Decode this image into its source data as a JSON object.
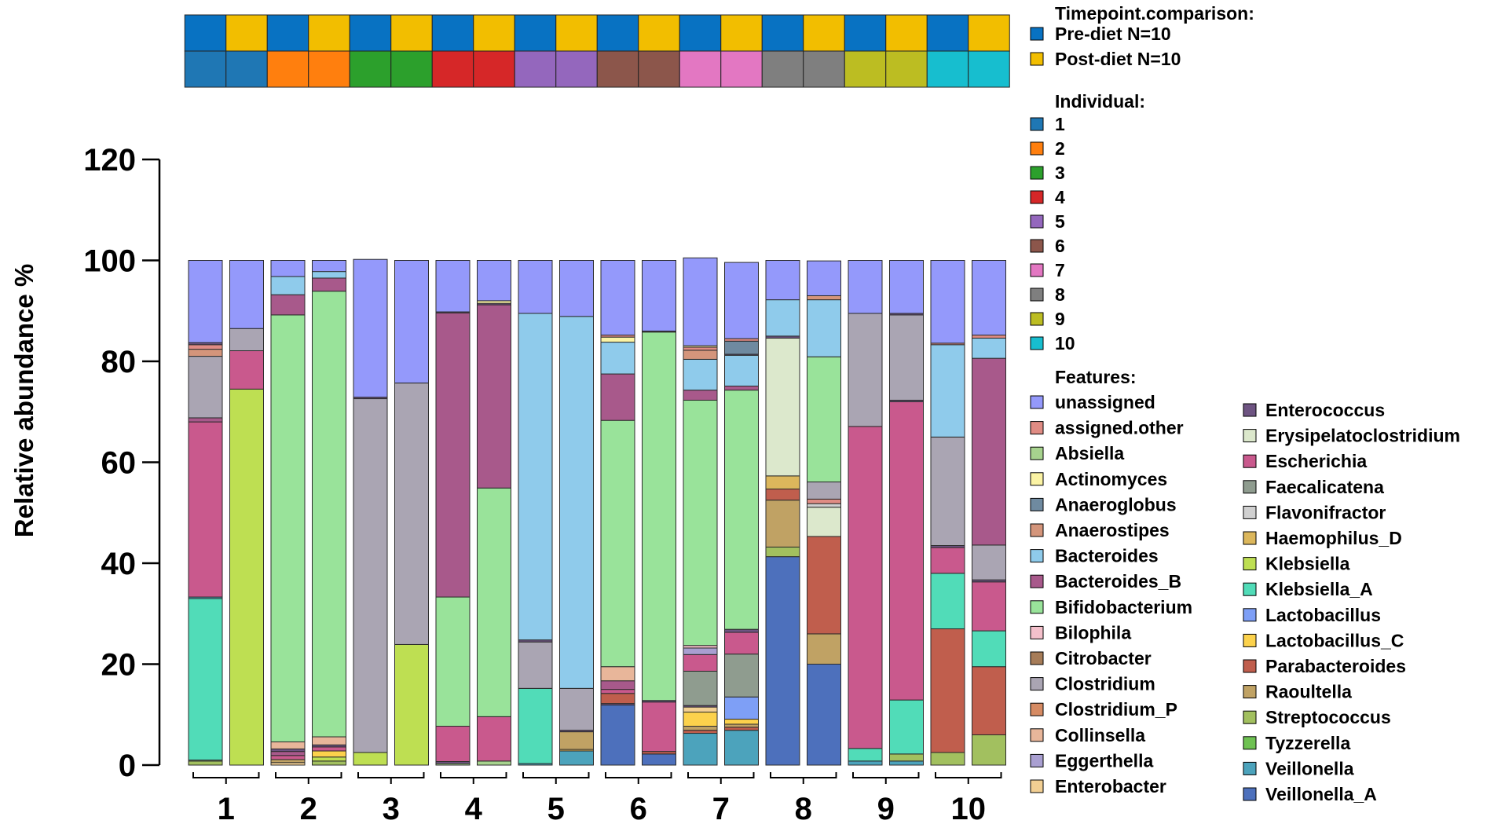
{
  "chart_data": {
    "type": "bar",
    "stacked": true,
    "ylabel": "Relative abundance %",
    "ylim": [
      0,
      120
    ],
    "yticks": [
      0,
      20,
      40,
      60,
      80,
      100,
      120
    ],
    "group_labels": [
      "1",
      "2",
      "3",
      "4",
      "5",
      "6",
      "7",
      "8",
      "9",
      "10"
    ],
    "bars_per_group": [
      "Pre-diet",
      "Post-diet"
    ],
    "legends": {
      "timepoint": {
        "title": "Timepoint.comparison:",
        "items": [
          {
            "label": "Pre-diet N=10",
            "color": "#0872c2"
          },
          {
            "label": "Post-diet N=10",
            "color": "#f2be00"
          }
        ]
      },
      "individual": {
        "title": "Individual:",
        "items": [
          {
            "label": "1",
            "color": "#1f77b4"
          },
          {
            "label": "2",
            "color": "#ff7f0e"
          },
          {
            "label": "3",
            "color": "#2ca02c"
          },
          {
            "label": "4",
            "color": "#d62728"
          },
          {
            "label": "5",
            "color": "#9467bd"
          },
          {
            "label": "6",
            "color": "#8c564b"
          },
          {
            "label": "7",
            "color": "#e377c2"
          },
          {
            "label": "8",
            "color": "#7f7f7f"
          },
          {
            "label": "9",
            "color": "#bcbd22"
          },
          {
            "label": "10",
            "color": "#17becf"
          }
        ]
      },
      "features_title": "Features:"
    },
    "features": [
      {
        "name": "unassigned",
        "color": "#9499fb"
      },
      {
        "name": "assigned.other",
        "color": "#e08c84"
      },
      {
        "name": "Absiella",
        "color": "#a7d38e"
      },
      {
        "name": "Actinomyces",
        "color": "#fbf3a4"
      },
      {
        "name": "Anaeroglobus",
        "color": "#6f8aa0"
      },
      {
        "name": "Anaerostipes",
        "color": "#d4957b"
      },
      {
        "name": "Bacteroides",
        "color": "#8fcbeb"
      },
      {
        "name": "Bacteroides_B",
        "color": "#a8598b"
      },
      {
        "name": "Bifidobacterium",
        "color": "#99e39a"
      },
      {
        "name": "Bilophila",
        "color": "#f4c0cb"
      },
      {
        "name": "Citrobacter",
        "color": "#a67c58"
      },
      {
        "name": "Clostridium",
        "color": "#aaa5b3"
      },
      {
        "name": "Clostridium_P",
        "color": "#d68b63"
      },
      {
        "name": "Collinsella",
        "color": "#e8b69a"
      },
      {
        "name": "Eggerthella",
        "color": "#a99fd1"
      },
      {
        "name": "Enterobacter",
        "color": "#f2cf93"
      },
      {
        "name": "Enterococcus",
        "color": "#6e5482"
      },
      {
        "name": "Erysipelatoclostridium",
        "color": "#dce8cc"
      },
      {
        "name": "Escherichia",
        "color": "#c9598d"
      },
      {
        "name": "Faecalicatena",
        "color": "#8f9c8f"
      },
      {
        "name": "Flavonifractor",
        "color": "#d0d0d0"
      },
      {
        "name": "Haemophilus_D",
        "color": "#dcb75c"
      },
      {
        "name": "Klebsiella",
        "color": "#bedf52"
      },
      {
        "name": "Klebsiella_A",
        "color": "#51dcb8"
      },
      {
        "name": "Lactobacillus",
        "color": "#7e9ff6"
      },
      {
        "name": "Lactobacillus_C",
        "color": "#fcd24c"
      },
      {
        "name": "Parabacteroides",
        "color": "#c05e4d"
      },
      {
        "name": "Raoultella",
        "color": "#c0a264"
      },
      {
        "name": "Streptococcus",
        "color": "#a2c05f"
      },
      {
        "name": "Tyzzerella",
        "color": "#6ec152"
      },
      {
        "name": "Veillonella",
        "color": "#4ca3bc"
      },
      {
        "name": "Veillonella_A",
        "color": "#4d70bc"
      }
    ],
    "bars": [
      {
        "individual": "1",
        "timepoint": "Pre-diet",
        "segments": [
          [
            "Streptococcus",
            0.8
          ],
          [
            "Absiella",
            0.2
          ],
          [
            "Klebsiella_A",
            32.0
          ],
          [
            "Veillonella",
            0.3
          ],
          [
            "Escherichia",
            34.7
          ],
          [
            "Bacteroides_B",
            0.8
          ],
          [
            "Clostridium",
            12.2
          ],
          [
            "Anaerostipes",
            1.4
          ],
          [
            "assigned.other",
            0.9
          ],
          [
            "Enterococcus",
            0.4
          ],
          [
            "unassigned",
            16.3
          ]
        ]
      },
      {
        "individual": "1",
        "timepoint": "Post-diet",
        "segments": [
          [
            "Klebsiella",
            74.5
          ],
          [
            "Escherichia",
            7.6
          ],
          [
            "Clostridium",
            4.4
          ],
          [
            "unassigned",
            13.5
          ]
        ]
      },
      {
        "individual": "2",
        "timepoint": "Pre-diet",
        "segments": [
          [
            "Enterobacter",
            0.5
          ],
          [
            "Raoultella",
            0.6
          ],
          [
            "Escherichia",
            0.8
          ],
          [
            "Bacteroides_B",
            0.8
          ],
          [
            "Enterococcus",
            0.5
          ],
          [
            "Collinsella",
            1.4
          ],
          [
            "Bifidobacterium",
            84.6
          ],
          [
            "Bacteroides_B",
            4.0
          ],
          [
            "Bacteroides",
            3.6
          ],
          [
            "unassigned",
            3.2
          ]
        ]
      },
      {
        "individual": "2",
        "timepoint": "Post-diet",
        "segments": [
          [
            "Streptococcus",
            0.8
          ],
          [
            "Klebsiella",
            0.8
          ],
          [
            "Lactobacillus_C",
            1.2
          ],
          [
            "Escherichia",
            0.8
          ],
          [
            "Enterococcus",
            0.4
          ],
          [
            "Collinsella",
            1.6
          ],
          [
            "Bifidobacterium",
            88.3
          ],
          [
            "Bacteroides_B",
            2.6
          ],
          [
            "Bacteroides",
            1.3
          ],
          [
            "unassigned",
            2.2
          ]
        ]
      },
      {
        "individual": "3",
        "timepoint": "Pre-diet",
        "segments": [
          [
            "Klebsiella",
            2.5
          ],
          [
            "Clostridium",
            70.1
          ],
          [
            "Enterococcus",
            0.3
          ],
          [
            "unassigned",
            27.3
          ]
        ]
      },
      {
        "individual": "3",
        "timepoint": "Post-diet",
        "segments": [
          [
            "Klebsiella",
            23.9
          ],
          [
            "Clostridium",
            51.8
          ],
          [
            "unassigned",
            24.3
          ]
        ]
      },
      {
        "individual": "4",
        "timepoint": "Pre-diet",
        "segments": [
          [
            "Absiella",
            0.3
          ],
          [
            "Enterococcus",
            0.4
          ],
          [
            "Escherichia",
            7.0
          ],
          [
            "Bifidobacterium",
            25.6
          ],
          [
            "Bacteroides_B",
            56.3
          ],
          [
            "Enterococcus",
            0.2
          ],
          [
            "unassigned",
            10.2
          ]
        ]
      },
      {
        "individual": "4",
        "timepoint": "Post-diet",
        "segments": [
          [
            "Absiella",
            0.8
          ],
          [
            "Escherichia",
            8.8
          ],
          [
            "Bifidobacterium",
            45.3
          ],
          [
            "Bacteroides_B",
            36.3
          ],
          [
            "Enterococcus",
            0.3
          ],
          [
            "Actinomyces",
            0.5
          ],
          [
            "unassigned",
            8.0
          ]
        ]
      },
      {
        "individual": "5",
        "timepoint": "Pre-diet",
        "segments": [
          [
            "Veillonella",
            0.3
          ],
          [
            "Klebsiella_A",
            14.9
          ],
          [
            "Clostridium",
            9.2
          ],
          [
            "Enterococcus",
            0.4
          ],
          [
            "Bacteroides",
            64.7
          ],
          [
            "unassigned",
            10.5
          ]
        ]
      },
      {
        "individual": "5",
        "timepoint": "Post-diet",
        "segments": [
          [
            "Veillonella",
            2.8
          ],
          [
            "Haemophilus_D",
            0.3
          ],
          [
            "Raoultella",
            3.5
          ],
          [
            "Enterococcus",
            0.3
          ],
          [
            "Clostridium",
            8.3
          ],
          [
            "Bacteroides",
            73.7
          ],
          [
            "unassigned",
            11.1
          ]
        ]
      },
      {
        "individual": "6",
        "timepoint": "Pre-diet",
        "segments": [
          [
            "Veillonella_A",
            11.9
          ],
          [
            "Enterococcus",
            0.3
          ],
          [
            "Parabacteroides",
            2.0
          ],
          [
            "Escherichia",
            0.8
          ],
          [
            "Bacteroides_B",
            1.7
          ],
          [
            "Collinsella",
            2.8
          ],
          [
            "Bifidobacterium",
            48.8
          ],
          [
            "Bacteroides_B",
            9.2
          ],
          [
            "Bacteroides",
            6.3
          ],
          [
            "Actinomyces",
            1.0
          ],
          [
            "assigned.other",
            0.4
          ],
          [
            "unassigned",
            14.8
          ]
        ]
      },
      {
        "individual": "6",
        "timepoint": "Post-diet",
        "segments": [
          [
            "Veillonella_A",
            2.2
          ],
          [
            "Parabacteroides",
            0.5
          ],
          [
            "Escherichia",
            9.8
          ],
          [
            "Enterococcus",
            0.3
          ],
          [
            "Bifidobacterium",
            73.0
          ],
          [
            "Enterococcus",
            0.2
          ],
          [
            "unassigned",
            14.0
          ]
        ]
      },
      {
        "individual": "7",
        "timepoint": "Pre-diet",
        "segments": [
          [
            "Veillonella",
            6.3
          ],
          [
            "Parabacteroides",
            0.6
          ],
          [
            "Raoultella",
            0.8
          ],
          [
            "Lactobacillus_C",
            2.8
          ],
          [
            "Enterobacter",
            1.0
          ],
          [
            "Enterococcus",
            0.3
          ],
          [
            "Faecalicatena",
            6.8
          ],
          [
            "Escherichia",
            3.3
          ],
          [
            "Eggerthella",
            1.3
          ],
          [
            "Bilophila",
            0.5
          ],
          [
            "Bifidobacterium",
            48.6
          ],
          [
            "Bacteroides_B",
            2.0
          ],
          [
            "Bacteroides",
            6.1
          ],
          [
            "Anaerostipes",
            1.8
          ],
          [
            "assigned.other",
            0.6
          ],
          [
            "Actinomyces",
            0.3
          ],
          [
            "unassigned",
            17.4
          ]
        ]
      },
      {
        "individual": "7",
        "timepoint": "Post-diet",
        "segments": [
          [
            "Veillonella",
            6.9
          ],
          [
            "Parabacteroides",
            0.6
          ],
          [
            "Raoultella",
            0.6
          ],
          [
            "Lactobacillus_C",
            1.0
          ],
          [
            "Lactobacillus",
            4.4
          ],
          [
            "Faecalicatena",
            8.5
          ],
          [
            "Escherichia",
            4.3
          ],
          [
            "Enterococcus",
            0.6
          ],
          [
            "Bifidobacterium",
            47.4
          ],
          [
            "Bacteroides_B",
            0.8
          ],
          [
            "Bacteroides",
            6.1
          ],
          [
            "Enterococcus",
            0.2
          ],
          [
            "Anaeroglobus",
            2.6
          ],
          [
            "assigned.other",
            0.5
          ],
          [
            "unassigned",
            15.1
          ]
        ]
      },
      {
        "individual": "8",
        "timepoint": "Pre-diet",
        "segments": [
          [
            "Veillonella_A",
            41.3
          ],
          [
            "Streptococcus",
            1.9
          ],
          [
            "Raoultella",
            9.3
          ],
          [
            "Parabacteroides",
            2.2
          ],
          [
            "Haemophilus_D",
            2.6
          ],
          [
            "Erysipelatoclostridium",
            27.3
          ],
          [
            "Enterococcus",
            0.4
          ],
          [
            "Bacteroides",
            7.2
          ],
          [
            "unassigned",
            7.8
          ]
        ]
      },
      {
        "individual": "8",
        "timepoint": "Post-diet",
        "segments": [
          [
            "Veillonella_A",
            20.0
          ],
          [
            "Raoultella",
            6.0
          ],
          [
            "Parabacteroides",
            19.3
          ],
          [
            "Erysipelatoclostridium",
            5.8
          ],
          [
            "Flavonifractor",
            0.7
          ],
          [
            "assigned.other",
            0.9
          ],
          [
            "Clostridium",
            3.4
          ],
          [
            "Bifidobacterium",
            24.8
          ],
          [
            "Bacteroides",
            11.3
          ],
          [
            "Anaerostipes",
            0.8
          ],
          [
            "unassigned",
            6.9
          ]
        ]
      },
      {
        "individual": "9",
        "timepoint": "Pre-diet",
        "segments": [
          [
            "Veillonella",
            0.8
          ],
          [
            "Klebsiella_A",
            2.5
          ],
          [
            "Escherichia",
            63.8
          ],
          [
            "Clostridium",
            22.4
          ],
          [
            "unassigned",
            10.5
          ]
        ]
      },
      {
        "individual": "9",
        "timepoint": "Post-diet",
        "segments": [
          [
            "Veillonella",
            0.8
          ],
          [
            "Streptococcus",
            1.4
          ],
          [
            "Klebsiella_A",
            10.7
          ],
          [
            "Escherichia",
            59.1
          ],
          [
            "Enterococcus",
            0.3
          ],
          [
            "Clostridium",
            16.9
          ],
          [
            "Enterococcus",
            0.3
          ],
          [
            "unassigned",
            10.5
          ]
        ]
      },
      {
        "individual": "10",
        "timepoint": "Pre-diet",
        "segments": [
          [
            "Streptococcus",
            2.5
          ],
          [
            "Parabacteroides",
            24.5
          ],
          [
            "Klebsiella_A",
            11.0
          ],
          [
            "Escherichia",
            5.1
          ],
          [
            "Enterococcus",
            0.4
          ],
          [
            "Clostridium",
            21.5
          ],
          [
            "Bacteroides",
            18.3
          ],
          [
            "assigned.other",
            0.3
          ],
          [
            "unassigned",
            16.4
          ]
        ]
      },
      {
        "individual": "10",
        "timepoint": "Post-diet",
        "segments": [
          [
            "Streptococcus",
            6.0
          ],
          [
            "Parabacteroides",
            13.5
          ],
          [
            "Klebsiella_A",
            7.1
          ],
          [
            "Escherichia",
            9.7
          ],
          [
            "Enterococcus",
            0.4
          ],
          [
            "Clostridium",
            6.9
          ],
          [
            "Bacteroides_B",
            37.0
          ],
          [
            "Bacteroides",
            4.0
          ],
          [
            "assigned.other",
            0.6
          ],
          [
            "unassigned",
            14.8
          ]
        ]
      }
    ]
  }
}
